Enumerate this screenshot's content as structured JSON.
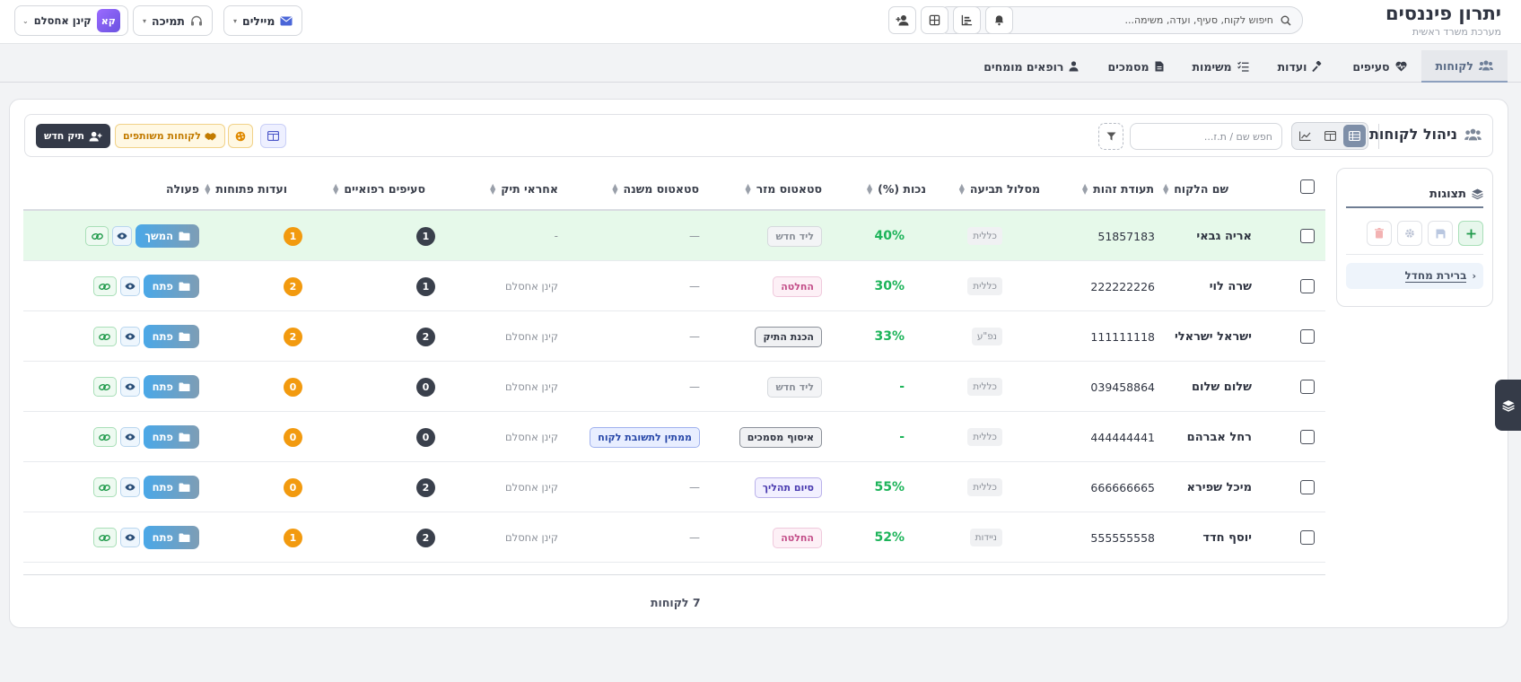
{
  "header": {
    "brand_title": "יתרון פיננסים",
    "brand_subtitle": "מערכת משרד ראשית",
    "search_placeholder": "חיפוש לקוח, סעיף, ועדה, משימה...",
    "mail_label": "מיילים",
    "support_label": "תמיכה",
    "user_name": "קינן אחסלם",
    "user_initials": "קא"
  },
  "nav": {
    "tabs": [
      {
        "label": "לקוחות",
        "icon": "users-icon",
        "active": true
      },
      {
        "label": "סעיפים",
        "icon": "heart-pulse-icon"
      },
      {
        "label": "ועדות",
        "icon": "gavel-icon"
      },
      {
        "label": "משימות",
        "icon": "tasks-icon"
      },
      {
        "label": "מסמכים",
        "icon": "file-icon"
      },
      {
        "label": "רופאים מומחים",
        "icon": "doctor-icon"
      }
    ]
  },
  "toolbar": {
    "title": "ניהול לקוחות",
    "search_placeholder": "חפש שם / ת.ז...",
    "new_case_label": "תיק חדש",
    "shared_clients_label": "לקוחות משותפים"
  },
  "side_panel": {
    "title": "תצוגות",
    "default_item": "ברירת מחדל"
  },
  "table": {
    "columns": {
      "name": "שם הלקוח",
      "id": "תעודת זהות",
      "track": "מסלול תביעה",
      "disability": "נכות (%)",
      "main_status": "סטאטוס מזר",
      "sub_status": "סטאטוס משנה",
      "owner": "אחראי תיק",
      "medical": "סעיפים רפואיים",
      "committees": "ועדות פתוחות",
      "action": "פעולה"
    },
    "rows": [
      {
        "name": "אריה גבאי",
        "id": "51857183",
        "track": "כללית",
        "disability": "40%",
        "main_status": "ליד חדש",
        "sub_status": "—",
        "owner": "-",
        "medical": "1",
        "committees": "1",
        "action": "המשך"
      },
      {
        "name": "שרה לוי",
        "id": "222222226",
        "track": "כללית",
        "disability": "30%",
        "main_status": "החלטה",
        "sub_status": "—",
        "owner": "קינן אחסלם",
        "medical": "1",
        "committees": "2",
        "action": "פתח"
      },
      {
        "name": "ישראל ישראלי",
        "id": "111111118",
        "track": "נפ\"ע",
        "disability": "33%",
        "main_status": "הכנת התיק",
        "sub_status": "—",
        "owner": "קינן אחסלם",
        "medical": "2",
        "committees": "2",
        "action": "פתח"
      },
      {
        "name": "שלום שלום",
        "id": "039458864",
        "track": "כללית",
        "disability": "-",
        "main_status": "ליד חדש",
        "sub_status": "—",
        "owner": "קינן אחסלם",
        "medical": "0",
        "committees": "0",
        "action": "פתח"
      },
      {
        "name": "רחל אברהם",
        "id": "444444441",
        "track": "כללית",
        "disability": "-",
        "main_status": "איסוף מסמכים",
        "sub_status": "ממתין לתשובת לקוח",
        "owner": "קינן אחסלם",
        "medical": "0",
        "committees": "0",
        "action": "פתח"
      },
      {
        "name": "מיכל שפירא",
        "id": "666666665",
        "track": "כללית",
        "disability": "55%",
        "main_status": "סיום תהליך",
        "sub_status": "—",
        "owner": "קינן אחסלם",
        "medical": "2",
        "committees": "0",
        "action": "פתח"
      },
      {
        "name": "יוסף חדד",
        "id": "555555558",
        "track": "ניידות",
        "disability": "52%",
        "main_status": "החלטה",
        "sub_status": "—",
        "owner": "קינן אחסלם",
        "medical": "2",
        "committees": "1",
        "action": "פתח"
      }
    ],
    "row_count_label": "7 לקוחות"
  },
  "colors": {
    "accent": "#343a48",
    "highlight_row": "#e6f9ea",
    "percent": "#1db45a",
    "badge_orange": "#f29a0f"
  }
}
